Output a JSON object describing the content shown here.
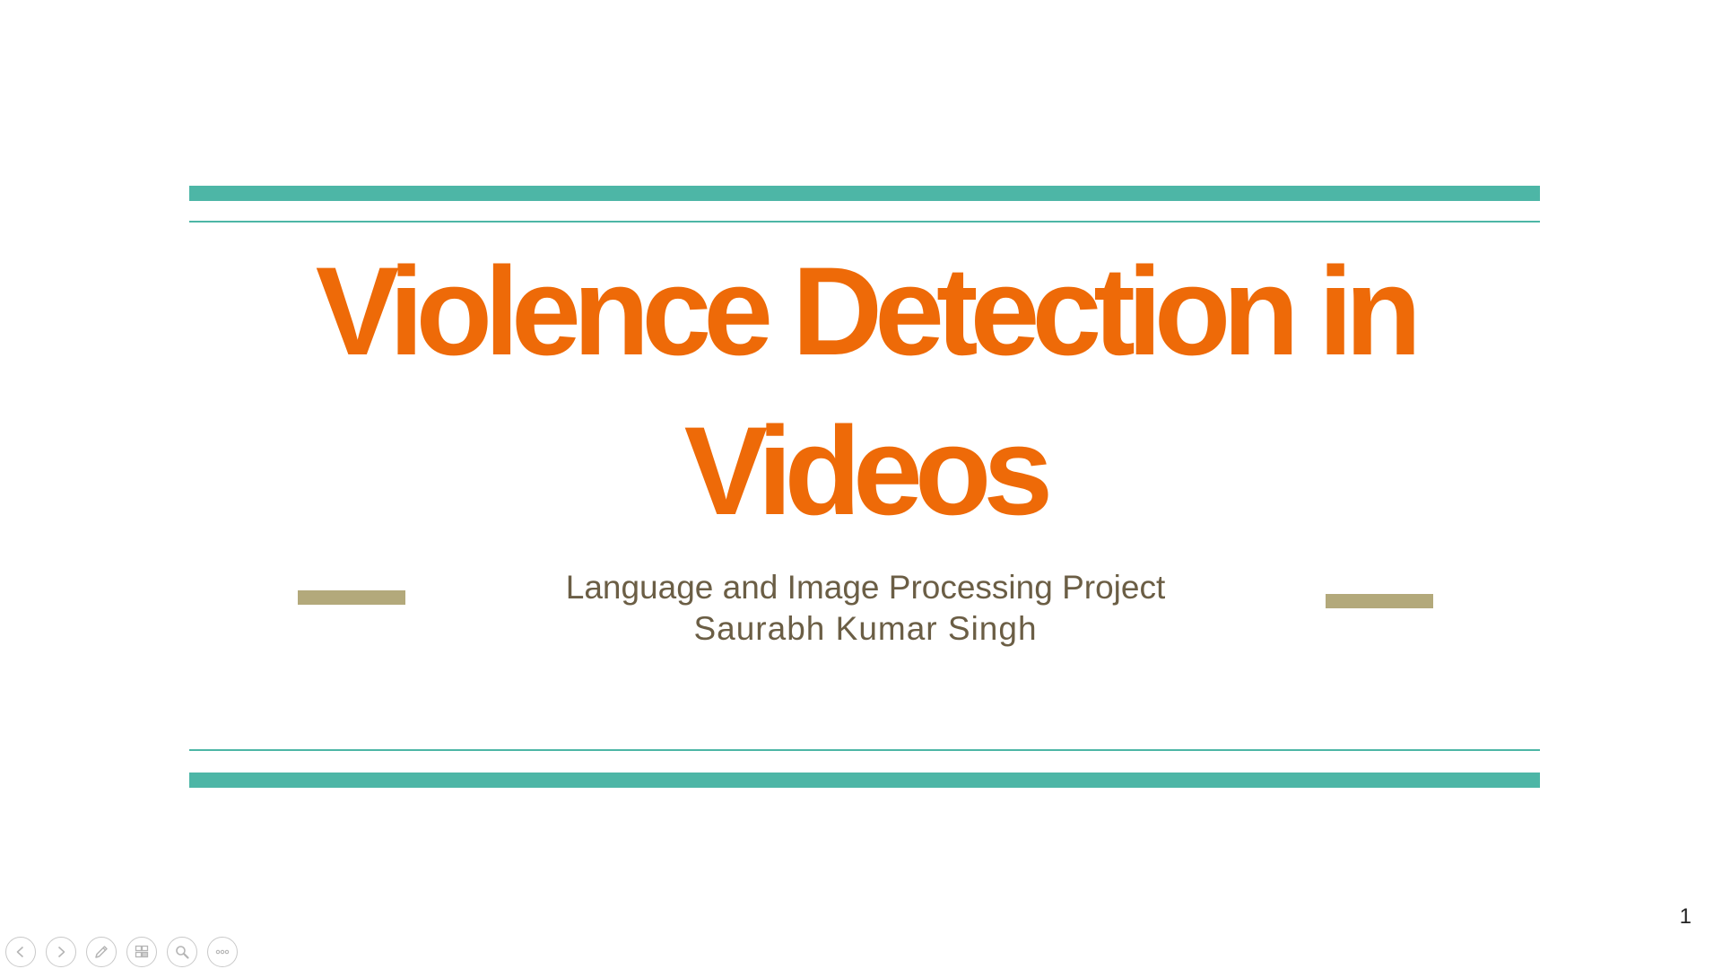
{
  "slide": {
    "title": "Violence Detection in Videos",
    "subtitle_line1": "Language and Image Processing Project",
    "subtitle_line2": "Saurabh Kumar Singh",
    "page_number": "1"
  },
  "colors": {
    "title": "#ee6a08",
    "teal_bars": "#4db6a6",
    "accent_dashes": "#b3a97b",
    "subtitle": "#6b5e45"
  },
  "presenter_controls": [
    {
      "name": "previous-slide-button",
      "icon": "chevron-left-icon"
    },
    {
      "name": "next-slide-button",
      "icon": "chevron-right-icon"
    },
    {
      "name": "pen-tool-button",
      "icon": "pen-icon"
    },
    {
      "name": "see-all-slides-button",
      "icon": "slides-grid-icon"
    },
    {
      "name": "zoom-button",
      "icon": "magnifier-icon"
    },
    {
      "name": "more-options-button",
      "icon": "ellipsis-icon"
    }
  ]
}
